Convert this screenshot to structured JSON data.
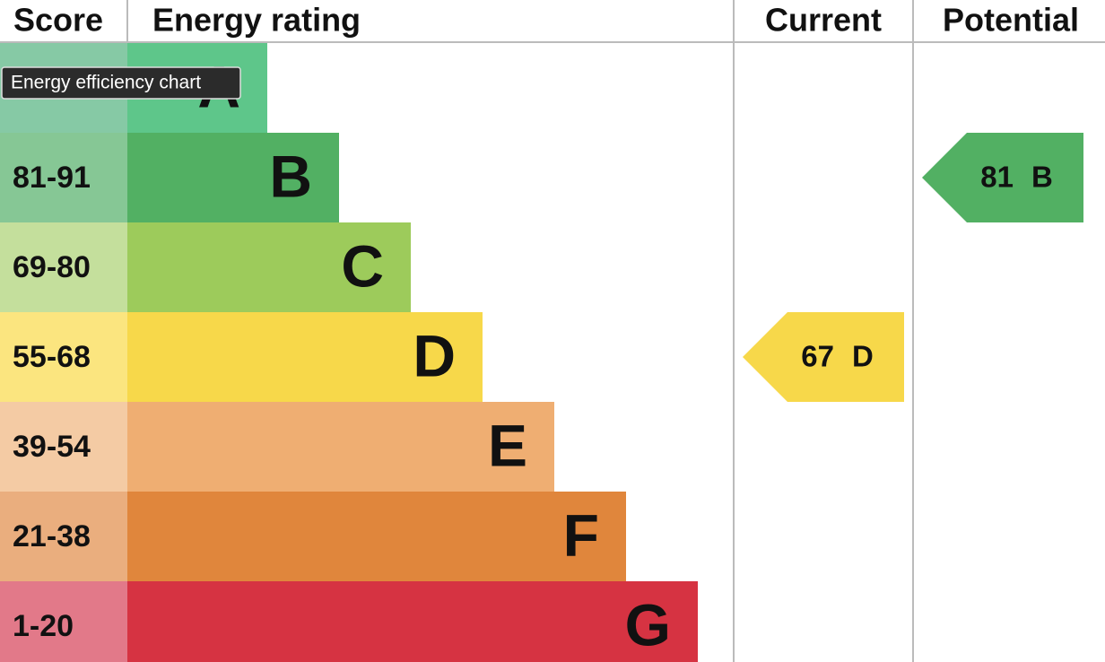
{
  "header": {
    "score": "Score",
    "energy_rating": "Energy rating",
    "current": "Current",
    "potential": "Potential"
  },
  "bands": [
    {
      "rating": "A",
      "bar_color": "#5ec68a",
      "score_color": "#86c9a5"
    },
    {
      "score": "81-91",
      "rating": "B",
      "bar_color": "#52b063",
      "score_color": "#86c795"
    },
    {
      "score": "69-80",
      "rating": "C",
      "bar_color": "#9dcb5b",
      "score_color": "#c4df9c"
    },
    {
      "score": "55-68",
      "rating": "D",
      "bar_color": "#f7d84a",
      "score_color": "#fbe57f"
    },
    {
      "score": "39-54",
      "rating": "E",
      "bar_color": "#efae72",
      "score_color": "#f4cba4"
    },
    {
      "score": "21-38",
      "rating": "F",
      "bar_color": "#e0863c",
      "score_color": "#eaae7e"
    },
    {
      "score": "1-20",
      "rating": "G",
      "bar_color": "#d63342",
      "score_color": "#e27989"
    }
  ],
  "current": {
    "score": 67,
    "rating": "D",
    "color": "#f7d84a"
  },
  "potential": {
    "score": 81,
    "rating": "B",
    "color": "#52b063"
  },
  "tooltip": "Energy efficiency chart"
}
